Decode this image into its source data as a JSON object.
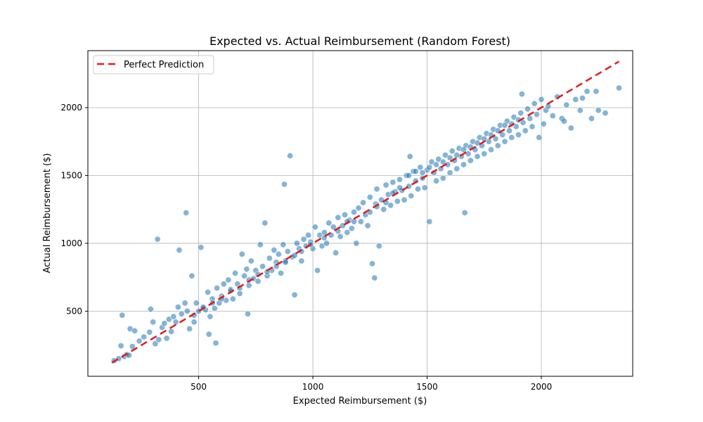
{
  "chart_data": {
    "type": "scatter",
    "title": "Expected vs. Actual Reimbursement (Random Forest)",
    "xlabel": "Expected Reimbursement ($)",
    "ylabel": "Actual Reimbursement ($)",
    "xlim": [
      15,
      2400
    ],
    "ylim": [
      20,
      2420
    ],
    "xticks": [
      500,
      1000,
      1500,
      2000
    ],
    "yticks": [
      500,
      1000,
      1500,
      2000
    ],
    "grid": true,
    "legend": {
      "placement": "top-left",
      "entries": [
        "Perfect Prediction"
      ]
    },
    "perfect_line": {
      "x": [
        120,
        2340
      ],
      "y": [
        120,
        2340
      ],
      "color": "#e31a1c",
      "style": "dashed"
    },
    "point_color": "#1f77b4",
    "series": [
      {
        "name": "",
        "points": [
          [
            130,
            135
          ],
          [
            150,
            150
          ],
          [
            160,
            245
          ],
          [
            165,
            470
          ],
          [
            175,
            165
          ],
          [
            185,
            180
          ],
          [
            195,
            175
          ],
          [
            200,
            370
          ],
          [
            210,
            240
          ],
          [
            220,
            355
          ],
          [
            240,
            280
          ],
          [
            260,
            310
          ],
          [
            285,
            345
          ],
          [
            290,
            515
          ],
          [
            300,
            420
          ],
          [
            310,
            260
          ],
          [
            320,
            1030
          ],
          [
            325,
            290
          ],
          [
            340,
            380
          ],
          [
            350,
            410
          ],
          [
            360,
            300
          ],
          [
            370,
            440
          ],
          [
            380,
            350
          ],
          [
            390,
            460
          ],
          [
            400,
            420
          ],
          [
            410,
            530
          ],
          [
            415,
            950
          ],
          [
            425,
            480
          ],
          [
            440,
            560
          ],
          [
            445,
            1225
          ],
          [
            450,
            500
          ],
          [
            460,
            370
          ],
          [
            470,
            760
          ],
          [
            480,
            420
          ],
          [
            490,
            560
          ],
          [
            500,
            500
          ],
          [
            510,
            970
          ],
          [
            520,
            520
          ],
          [
            530,
            510
          ],
          [
            540,
            640
          ],
          [
            545,
            330
          ],
          [
            550,
            460
          ],
          [
            560,
            590
          ],
          [
            570,
            520
          ],
          [
            575,
            265
          ],
          [
            580,
            670
          ],
          [
            590,
            560
          ],
          [
            600,
            610
          ],
          [
            610,
            700
          ],
          [
            620,
            580
          ],
          [
            630,
            730
          ],
          [
            640,
            660
          ],
          [
            650,
            590
          ],
          [
            660,
            780
          ],
          [
            670,
            700
          ],
          [
            680,
            630
          ],
          [
            690,
            920
          ],
          [
            700,
            760
          ],
          [
            710,
            810
          ],
          [
            715,
            480
          ],
          [
            720,
            690
          ],
          [
            730,
            870
          ],
          [
            740,
            740
          ],
          [
            750,
            800
          ],
          [
            760,
            720
          ],
          [
            770,
            990
          ],
          [
            780,
            830
          ],
          [
            790,
            1150
          ],
          [
            800,
            760
          ],
          [
            810,
            890
          ],
          [
            820,
            800
          ],
          [
            830,
            950
          ],
          [
            840,
            860
          ],
          [
            850,
            920
          ],
          [
            860,
            780
          ],
          [
            870,
            990
          ],
          [
            875,
            1435
          ],
          [
            880,
            870
          ],
          [
            890,
            940
          ],
          [
            900,
            1645
          ],
          [
            910,
            900
          ],
          [
            920,
            620
          ],
          [
            930,
            1000
          ],
          [
            940,
            960
          ],
          [
            950,
            870
          ],
          [
            960,
            1030
          ],
          [
            970,
            980
          ],
          [
            980,
            1060
          ],
          [
            990,
            1010
          ],
          [
            1000,
            960
          ],
          [
            1010,
            1120
          ],
          [
            1020,
            800
          ],
          [
            1030,
            1060
          ],
          [
            1040,
            980
          ],
          [
            1050,
            1080
          ],
          [
            1060,
            1000
          ],
          [
            1070,
            1150
          ],
          [
            1080,
            1060
          ],
          [
            1090,
            1120
          ],
          [
            1100,
            930
          ],
          [
            1110,
            1190
          ],
          [
            1120,
            1050
          ],
          [
            1130,
            1130
          ],
          [
            1140,
            1210
          ],
          [
            1150,
            1080
          ],
          [
            1160,
            1170
          ],
          [
            1170,
            1110
          ],
          [
            1180,
            1230
          ],
          [
            1190,
            1000
          ],
          [
            1200,
            1260
          ],
          [
            1210,
            1160
          ],
          [
            1220,
            1300
          ],
          [
            1230,
            1210
          ],
          [
            1240,
            1130
          ],
          [
            1250,
            1340
          ],
          [
            1260,
            850
          ],
          [
            1270,
            745
          ],
          [
            1275,
            1290
          ],
          [
            1280,
            1400
          ],
          [
            1290,
            980
          ],
          [
            1300,
            1320
          ],
          [
            1310,
            1250
          ],
          [
            1320,
            1430
          ],
          [
            1330,
            1360
          ],
          [
            1340,
            1280
          ],
          [
            1350,
            1450
          ],
          [
            1360,
            1380
          ],
          [
            1370,
            1310
          ],
          [
            1380,
            1470
          ],
          [
            1390,
            1390
          ],
          [
            1400,
            1320
          ],
          [
            1410,
            1500
          ],
          [
            1420,
            1420
          ],
          [
            1425,
            1640
          ],
          [
            1430,
            1350
          ],
          [
            1440,
            1530
          ],
          [
            1450,
            1460
          ],
          [
            1460,
            1400
          ],
          [
            1470,
            1560
          ],
          [
            1480,
            1480
          ],
          [
            1490,
            1410
          ],
          [
            1500,
            1540
          ],
          [
            1510,
            1160
          ],
          [
            1520,
            1600
          ],
          [
            1530,
            1520
          ],
          [
            1540,
            1460
          ],
          [
            1550,
            1620
          ],
          [
            1560,
            1550
          ],
          [
            1570,
            1480
          ],
          [
            1580,
            1650
          ],
          [
            1590,
            1580
          ],
          [
            1600,
            1520
          ],
          [
            1610,
            1680
          ],
          [
            1620,
            1610
          ],
          [
            1630,
            1550
          ],
          [
            1640,
            1700
          ],
          [
            1650,
            1640
          ],
          [
            1660,
            1580
          ],
          [
            1665,
            1225
          ],
          [
            1670,
            1720
          ],
          [
            1680,
            1660
          ],
          [
            1690,
            1610
          ],
          [
            1700,
            1750
          ],
          [
            1710,
            1690
          ],
          [
            1720,
            1640
          ],
          [
            1730,
            1780
          ],
          [
            1740,
            1720
          ],
          [
            1750,
            1660
          ],
          [
            1760,
            1810
          ],
          [
            1770,
            1750
          ],
          [
            1780,
            1690
          ],
          [
            1790,
            1840
          ],
          [
            1800,
            1770
          ],
          [
            1810,
            1720
          ],
          [
            1820,
            1870
          ],
          [
            1830,
            1800
          ],
          [
            1840,
            1750
          ],
          [
            1850,
            1900
          ],
          [
            1860,
            1830
          ],
          [
            1870,
            1780
          ],
          [
            1880,
            1930
          ],
          [
            1890,
            1860
          ],
          [
            1900,
            1800
          ],
          [
            1910,
            1960
          ],
          [
            1915,
            2100
          ],
          [
            1920,
            1890
          ],
          [
            1930,
            1830
          ],
          [
            1940,
            1990
          ],
          [
            1950,
            1920
          ],
          [
            1960,
            1860
          ],
          [
            1970,
            2030
          ],
          [
            1980,
            1950
          ],
          [
            1990,
            1780
          ],
          [
            2000,
            2060
          ],
          [
            2010,
            1880
          ],
          [
            2020,
            1980
          ],
          [
            2030,
            2010
          ],
          [
            2050,
            1940
          ],
          [
            2070,
            2080
          ],
          [
            2090,
            1920
          ],
          [
            2100,
            1900
          ],
          [
            2110,
            2020
          ],
          [
            2130,
            1850
          ],
          [
            2150,
            2060
          ],
          [
            2170,
            1980
          ],
          [
            2180,
            2070
          ],
          [
            2200,
            2120
          ],
          [
            2220,
            1920
          ],
          [
            2240,
            2120
          ],
          [
            2250,
            1980
          ],
          [
            2280,
            1960
          ],
          [
            2340,
            2145
          ],
          [
            1420,
            1500
          ],
          [
            1450,
            1530
          ],
          [
            1480,
            1520
          ],
          [
            1510,
            1560
          ],
          [
            1540,
            1580
          ],
          [
            1570,
            1600
          ],
          [
            1600,
            1630
          ],
          [
            1630,
            1650
          ],
          [
            1660,
            1690
          ],
          [
            1690,
            1710
          ],
          [
            1720,
            1740
          ],
          [
            1750,
            1770
          ],
          [
            1780,
            1800
          ],
          [
            1810,
            1830
          ],
          [
            1840,
            1870
          ],
          [
            1870,
            1880
          ],
          [
            1900,
            1910
          ],
          [
            1350,
            1370
          ],
          [
            1380,
            1410
          ],
          [
            1320,
            1300
          ],
          [
            1250,
            1230
          ],
          [
            1280,
            1270
          ],
          [
            1180,
            1160
          ],
          [
            1150,
            1160
          ],
          [
            1110,
            1090
          ],
          [
            1050,
            1040
          ],
          [
            990,
            990
          ],
          [
            950,
            940
          ],
          [
            920,
            910
          ],
          [
            880,
            860
          ],
          [
            840,
            830
          ],
          [
            800,
            790
          ],
          [
            760,
            770
          ],
          [
            720,
            730
          ],
          [
            680,
            670
          ],
          [
            640,
            650
          ],
          [
            600,
            590
          ],
          [
            560,
            560
          ],
          [
            520,
            530
          ],
          [
            480,
            470
          ]
        ]
      }
    ]
  }
}
